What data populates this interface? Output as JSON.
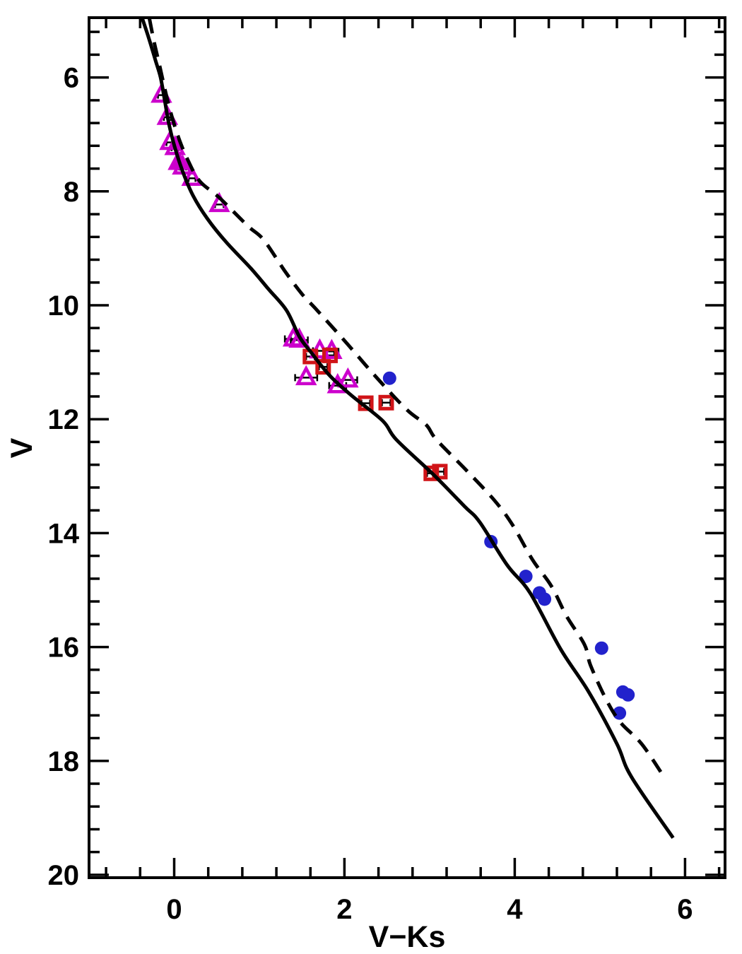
{
  "chart_data": {
    "type": "scatter",
    "title": "",
    "xlabel": "V−Ks",
    "ylabel": "V",
    "x_range": [
      -1.0,
      6.47
    ],
    "y_range": [
      4.95,
      20.05
    ],
    "y_axis_inverted": true,
    "grid": false,
    "legend": false,
    "x_major_ticks": [
      0,
      2,
      4,
      6
    ],
    "x_tick_labels": [
      "0",
      "2",
      "4",
      "6"
    ],
    "x_minor_step": 0.4,
    "y_major_ticks": [
      6,
      8,
      10,
      12,
      14,
      16,
      18,
      20
    ],
    "y_tick_labels": [
      "6",
      "8",
      "10",
      "12",
      "14",
      "16",
      "18",
      "20"
    ],
    "y_minor_step": 0.4,
    "colors": {
      "triangles": "#CC00CC",
      "squares": "#D01418",
      "circles": "#2222CC",
      "lines": "#000000",
      "error_bars": "#000000"
    },
    "series": [
      {
        "name": "magenta-open-triangles",
        "kind": "scatter",
        "marker": "triangle-open",
        "color_key": "triangles",
        "points_format": [
          "V-Ks",
          "V",
          "x_error"
        ],
        "points": [
          [
            -0.15,
            6.31,
            0.04
          ],
          [
            -0.08,
            6.7,
            0.04
          ],
          [
            -0.05,
            7.14,
            0.04
          ],
          [
            0.01,
            7.23,
            0.04
          ],
          [
            0.1,
            7.57,
            0.04
          ],
          [
            0.21,
            7.77,
            0.04
          ],
          [
            0.53,
            8.23,
            0.05
          ],
          [
            1.4,
            10.59,
            0.1
          ],
          [
            1.47,
            10.61,
            0.1
          ],
          [
            1.71,
            10.8,
            0.08
          ],
          [
            1.85,
            10.81,
            0.08
          ],
          [
            1.55,
            11.27,
            0.13
          ],
          [
            1.92,
            11.41,
            0.1
          ],
          [
            2.04,
            11.31,
            0.11
          ]
        ]
      },
      {
        "name": "magenta-filled-triangles",
        "kind": "scatter",
        "marker": "triangle-filled",
        "color_key": "triangles",
        "points_format": [
          "V-Ks",
          "V",
          "x_error"
        ],
        "points": [
          [
            0.05,
            7.49,
            0.04
          ]
        ]
      },
      {
        "name": "red-open-squares",
        "kind": "scatter",
        "marker": "square-open",
        "color_key": "squares",
        "points_format": [
          "V-Ks",
          "V",
          "x_error"
        ],
        "points": [
          [
            1.6,
            10.9,
            0.05
          ],
          [
            1.83,
            10.88,
            0.05
          ],
          [
            1.75,
            11.08,
            0.05
          ],
          [
            2.25,
            11.72,
            0.05
          ],
          [
            2.49,
            11.71,
            0.05
          ],
          [
            3.02,
            12.95,
            0.05
          ],
          [
            3.12,
            12.92,
            0.05
          ]
        ]
      },
      {
        "name": "blue-filled-circles",
        "kind": "scatter",
        "marker": "circle-filled",
        "color_key": "circles",
        "points_format": [
          "V-Ks",
          "V",
          "x_error"
        ],
        "points": [
          [
            2.53,
            11.28,
            0
          ],
          [
            3.72,
            14.15,
            0
          ],
          [
            4.13,
            14.76,
            0
          ],
          [
            4.29,
            15.05,
            0
          ],
          [
            4.35,
            15.16,
            0
          ],
          [
            5.02,
            16.02,
            0
          ],
          [
            5.27,
            16.79,
            0
          ],
          [
            5.33,
            16.84,
            0
          ],
          [
            5.23,
            17.16,
            0
          ]
        ]
      },
      {
        "name": "solid-sequence-line",
        "kind": "line",
        "style": "solid",
        "color_key": "lines",
        "points": [
          [
            -0.38,
            4.94
          ],
          [
            -0.3,
            5.3
          ],
          [
            -0.22,
            5.7
          ],
          [
            -0.16,
            6.0
          ],
          [
            -0.11,
            6.41
          ],
          [
            -0.06,
            6.83
          ],
          [
            0.01,
            7.24
          ],
          [
            0.1,
            7.65
          ],
          [
            0.22,
            8.07
          ],
          [
            0.39,
            8.48
          ],
          [
            0.61,
            8.89
          ],
          [
            0.9,
            9.35
          ],
          [
            1.11,
            9.72
          ],
          [
            1.32,
            10.09
          ],
          [
            1.47,
            10.55
          ],
          [
            1.61,
            10.83
          ],
          [
            1.83,
            11.24
          ],
          [
            2.08,
            11.58
          ],
          [
            2.45,
            12.03
          ],
          [
            2.61,
            12.36
          ],
          [
            3.05,
            12.98
          ],
          [
            3.41,
            13.53
          ],
          [
            3.59,
            13.81
          ],
          [
            3.91,
            14.56
          ],
          [
            4.18,
            15.05
          ],
          [
            4.54,
            16.04
          ],
          [
            4.87,
            16.79
          ],
          [
            5.2,
            17.7
          ],
          [
            5.37,
            18.28
          ],
          [
            5.86,
            19.35
          ]
        ]
      },
      {
        "name": "dashed-sequence-line",
        "kind": "line",
        "style": "dashed",
        "color_key": "lines",
        "points": [
          [
            -0.29,
            4.97
          ],
          [
            -0.24,
            5.35
          ],
          [
            -0.17,
            5.8
          ],
          [
            -0.11,
            6.2
          ],
          [
            -0.04,
            6.62
          ],
          [
            0.05,
            7.05
          ],
          [
            0.16,
            7.45
          ],
          [
            0.3,
            7.82
          ],
          [
            0.53,
            8.11
          ],
          [
            0.86,
            8.6
          ],
          [
            1.05,
            8.85
          ],
          [
            1.3,
            9.4
          ],
          [
            1.5,
            9.8
          ],
          [
            1.68,
            10.09
          ],
          [
            2.0,
            10.62
          ],
          [
            2.36,
            11.24
          ],
          [
            2.73,
            11.83
          ],
          [
            2.96,
            12.1
          ],
          [
            3.08,
            12.36
          ],
          [
            3.44,
            12.91
          ],
          [
            3.77,
            13.44
          ],
          [
            3.98,
            13.87
          ],
          [
            4.21,
            14.47
          ],
          [
            4.43,
            14.93
          ],
          [
            4.61,
            15.46
          ],
          [
            4.82,
            15.96
          ],
          [
            4.89,
            16.32
          ],
          [
            5.07,
            16.91
          ],
          [
            5.24,
            17.32
          ],
          [
            5.49,
            17.7
          ],
          [
            5.74,
            18.25
          ]
        ]
      }
    ]
  }
}
